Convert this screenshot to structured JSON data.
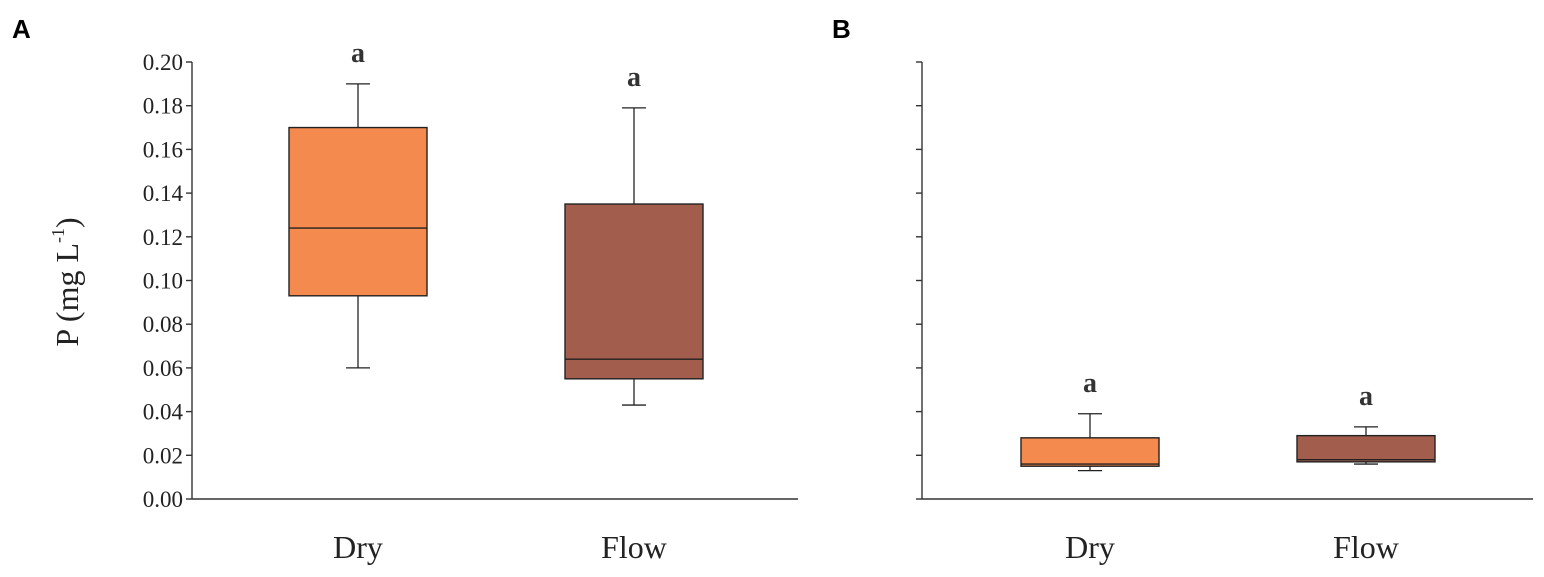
{
  "chart_data": [
    {
      "panel": "A",
      "type": "box",
      "categories": [
        "Dry",
        "Flow"
      ],
      "ylabel": "P (mg L",
      "ylabel_sup": "-1",
      "ylabel_close": ")",
      "ylim": [
        0.0,
        0.2
      ],
      "yticks": [
        "0.00",
        "0.02",
        "0.04",
        "0.06",
        "0.08",
        "0.10",
        "0.12",
        "0.14",
        "0.16",
        "0.18",
        "0.20"
      ],
      "boxes": [
        {
          "category": "Dry",
          "min": 0.06,
          "q1": 0.093,
          "median": 0.124,
          "q3": 0.17,
          "max": 0.19,
          "color": "#F58A4F",
          "label": "a"
        },
        {
          "category": "Flow",
          "min": 0.043,
          "q1": 0.055,
          "median": 0.064,
          "q3": 0.135,
          "max": 0.179,
          "color": "#A25D4C",
          "label": "a"
        }
      ]
    },
    {
      "panel": "B",
      "type": "box",
      "categories": [
        "Dry",
        "Flow"
      ],
      "ylim": [
        0.0,
        0.2
      ],
      "yticks": [],
      "boxes": [
        {
          "category": "Dry",
          "min": 0.013,
          "q1": 0.015,
          "median": 0.016,
          "q3": 0.028,
          "max": 0.039,
          "color": "#F58A4F",
          "label": "a"
        },
        {
          "category": "Flow",
          "min": 0.016,
          "q1": 0.017,
          "median": 0.018,
          "q3": 0.029,
          "max": 0.033,
          "color": "#A25D4C",
          "label": "a"
        }
      ]
    }
  ]
}
